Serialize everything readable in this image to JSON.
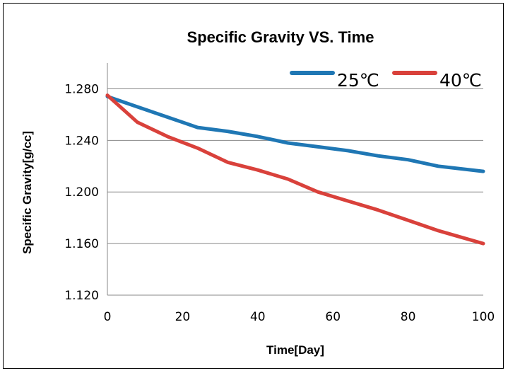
{
  "chart_data": {
    "type": "line",
    "title": "Specific Gravity VS. Time",
    "xlabel": "Time[Day]",
    "ylabel": "Specific Gravity[g/cc]",
    "xlim": [
      0,
      100
    ],
    "ylim": [
      1.12,
      1.3
    ],
    "x_ticks": [
      "0",
      "20",
      "40",
      "60",
      "80",
      "100"
    ],
    "y_ticks": [
      "1.120",
      "1.160",
      "1.200",
      "1.240",
      "1.280"
    ],
    "legend_position": "top-right",
    "grid": "horizontal",
    "series": [
      {
        "name": "25℃",
        "color": "#1f77b4",
        "x": [
          0,
          8,
          16,
          24,
          32,
          40,
          48,
          56,
          64,
          72,
          80,
          88,
          100
        ],
        "y": [
          1.274,
          1.266,
          1.258,
          1.25,
          1.247,
          1.243,
          1.238,
          1.235,
          1.232,
          1.228,
          1.225,
          1.22,
          1.216
        ]
      },
      {
        "name": "40℃",
        "color": "#d9413b",
        "x": [
          0,
          8,
          16,
          24,
          32,
          40,
          48,
          56,
          64,
          72,
          80,
          88,
          100
        ],
        "y": [
          1.275,
          1.254,
          1.243,
          1.234,
          1.223,
          1.217,
          1.21,
          1.2,
          1.193,
          1.186,
          1.178,
          1.17,
          1.16
        ]
      }
    ]
  }
}
